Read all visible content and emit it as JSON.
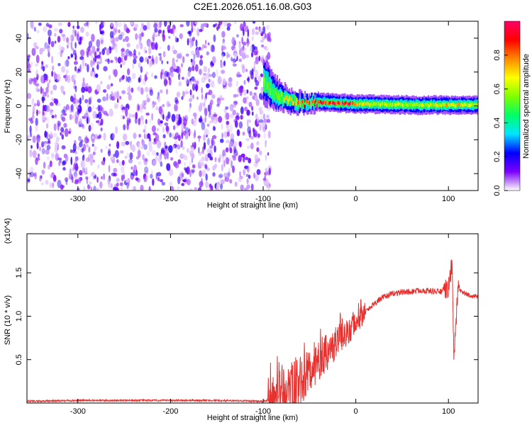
{
  "title": "C2E1.2026.051.16.08.G03",
  "chart_data": [
    {
      "type": "heatmap",
      "name": "spectrogram",
      "xlabel": "Height of straight line (km)",
      "ylabel": "Frequency (Hz)",
      "xlim": [
        -355,
        132
      ],
      "ylim": [
        -50,
        50
      ],
      "xticks": [
        -300,
        -200,
        -100,
        0,
        100
      ],
      "xtick_labels": [
        "-300",
        "-200",
        "-100",
        "0",
        "100"
      ],
      "yticks": [
        -40,
        -20,
        0,
        20,
        40
      ],
      "ytick_labels": [
        "-40",
        "-20",
        "0",
        "20",
        "40"
      ],
      "grid": false,
      "noise_region_x": [
        -355,
        -100
      ],
      "signal_region_x": [
        -100,
        132
      ],
      "colorbar": {
        "label": "Normalized spectral amplitude",
        "range": [
          0.0,
          1.0
        ],
        "ticks": [
          0.0,
          0.2,
          0.4,
          0.6,
          0.8
        ],
        "tick_labels": [
          "0.0",
          "0.2",
          "0.4",
          "0.6",
          "0.8"
        ],
        "colors": [
          "#ffffff",
          "#7b00ff",
          "#0000ff",
          "#00e5ff",
          "#00ff66",
          "#7fff00",
          "#ffff00",
          "#ff8800",
          "#ff0000",
          "#ff0066"
        ]
      },
      "signal_band": {
        "x": [
          -100,
          -90,
          -80,
          -70,
          -60,
          -50,
          -40,
          -30,
          -20,
          -10,
          0,
          20,
          40,
          60,
          80,
          100,
          132
        ],
        "center_freq": [
          15,
          8,
          5,
          3,
          2,
          2,
          2,
          2,
          1.5,
          1.5,
          1,
          1,
          0.8,
          0.5,
          0.5,
          0.5,
          0.5
        ],
        "half_width": [
          10,
          8,
          6,
          5,
          4.5,
          4,
          4,
          4,
          4,
          4,
          4,
          4,
          4,
          4,
          4,
          4,
          4
        ],
        "peak_amplitude": [
          0.5,
          0.5,
          0.55,
          0.7,
          0.8,
          0.85,
          0.9,
          0.85,
          0.9,
          0.9,
          0.7,
          0.6,
          0.6,
          0.6,
          0.6,
          0.7,
          0.6
        ]
      }
    },
    {
      "type": "line",
      "name": "snr",
      "xlabel": "Height of straight line (km)",
      "ylabel": "SNR (10 * v/v)",
      "y_multiplier": "(x10^4)",
      "xlim": [
        -355,
        132
      ],
      "ylim": [
        0,
        1.95
      ],
      "xticks": [
        -300,
        -200,
        -100,
        0,
        100
      ],
      "xtick_labels": [
        "-300",
        "-200",
        "-100",
        "0",
        "100"
      ],
      "yticks": [
        0.5,
        1.0,
        1.5
      ],
      "ytick_labels": [
        "0.5",
        "1.0",
        "1.5"
      ],
      "grid": false,
      "color": "#e8312f",
      "x": [
        -355,
        -300,
        -250,
        -200,
        -150,
        -100,
        -90,
        -80,
        -70,
        -60,
        -50,
        -40,
        -30,
        -20,
        -10,
        0,
        10,
        20,
        30,
        40,
        50,
        60,
        70,
        80,
        90,
        100,
        104,
        106,
        110,
        120,
        132
      ],
      "y": [
        0.02,
        0.03,
        0.03,
        0.03,
        0.03,
        0.02,
        0.04,
        0.08,
        0.15,
        0.25,
        0.35,
        0.5,
        0.6,
        0.72,
        0.82,
        0.92,
        1.05,
        1.15,
        1.22,
        1.26,
        1.28,
        1.28,
        1.3,
        1.29,
        1.28,
        1.32,
        1.6,
        0.5,
        1.3,
        1.25,
        1.22
      ]
    }
  ]
}
